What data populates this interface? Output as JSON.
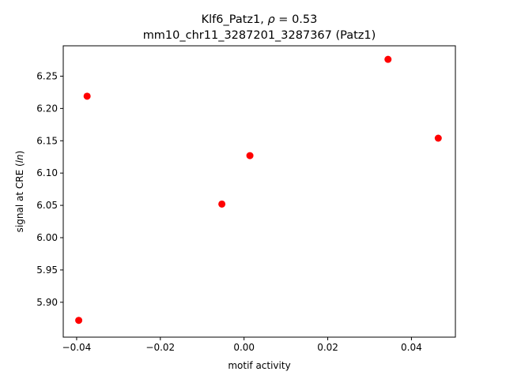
{
  "chart_data": {
    "type": "scatter",
    "title_line1_prefix": "Klf6_Patz1, ",
    "title_line1_symbol": "ρ",
    "title_line1_suffix": " = 0.53",
    "title_line2": "mm10_chr11_3287201_3287367 (Patz1)",
    "xlabel": "motif activity",
    "ylabel_prefix": "signal at CRE (",
    "ylabel_italic": "ln",
    "ylabel_suffix": ")",
    "xlim": [
      -0.0432,
      0.0505
    ],
    "ylim": [
      5.846,
      6.297
    ],
    "xticks": [
      -0.04,
      -0.02,
      0.0,
      0.02,
      0.04
    ],
    "xtick_labels": [
      "−0.04",
      "−0.02",
      "0.00",
      "0.02",
      "0.04"
    ],
    "yticks": [
      5.9,
      5.95,
      6.0,
      6.05,
      6.1,
      6.15,
      6.2,
      6.25
    ],
    "ytick_labels": [
      "5.90",
      "5.95",
      "6.00",
      "6.05",
      "6.10",
      "6.15",
      "6.20",
      "6.25"
    ],
    "marker_color": "#ff0000",
    "grid": false,
    "points": [
      {
        "x": -0.0395,
        "y": 5.872
      },
      {
        "x": -0.0375,
        "y": 6.219
      },
      {
        "x": -0.0053,
        "y": 6.052
      },
      {
        "x": 0.0014,
        "y": 6.127
      },
      {
        "x": 0.0344,
        "y": 6.276
      },
      {
        "x": 0.0464,
        "y": 6.154
      }
    ]
  }
}
